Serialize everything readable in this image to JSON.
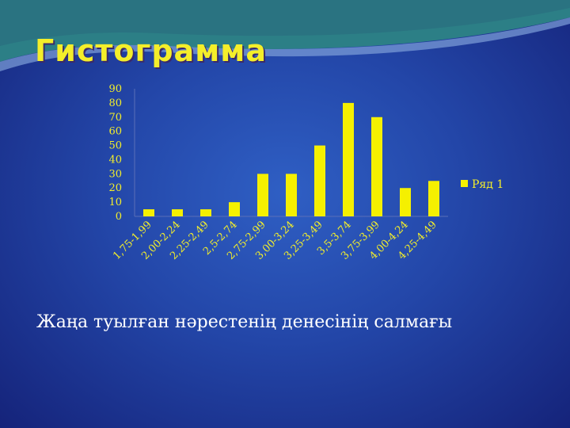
{
  "slide": {
    "title": "Гистограмма",
    "caption": "Жаңа туылған нәрестенің денесінің салмағы"
  },
  "colors": {
    "bar": "#f5f000",
    "text": "#f3ee2a",
    "background": "#2346a8"
  },
  "chart_data": {
    "type": "bar",
    "categories": [
      "1,75-1,99",
      "2,00-2,24",
      "2,25-2,49",
      "2,5-2,74",
      "2,75-2,99",
      "3,00-3,24",
      "3,25-3,49",
      "3,5-3,74",
      "3,75-3,99",
      "4,00-4,24",
      "4,25-4,49"
    ],
    "series": [
      {
        "name": "Ряд 1",
        "values": [
          5,
          5,
          5,
          10,
          30,
          30,
          50,
          80,
          70,
          20,
          25
        ]
      }
    ],
    "ylim": [
      0,
      90
    ],
    "yticks": [
      0,
      10,
      20,
      30,
      40,
      50,
      60,
      70,
      80,
      90
    ],
    "title": "",
    "xlabel": "",
    "ylabel": "",
    "grid": false,
    "legend": "right"
  }
}
